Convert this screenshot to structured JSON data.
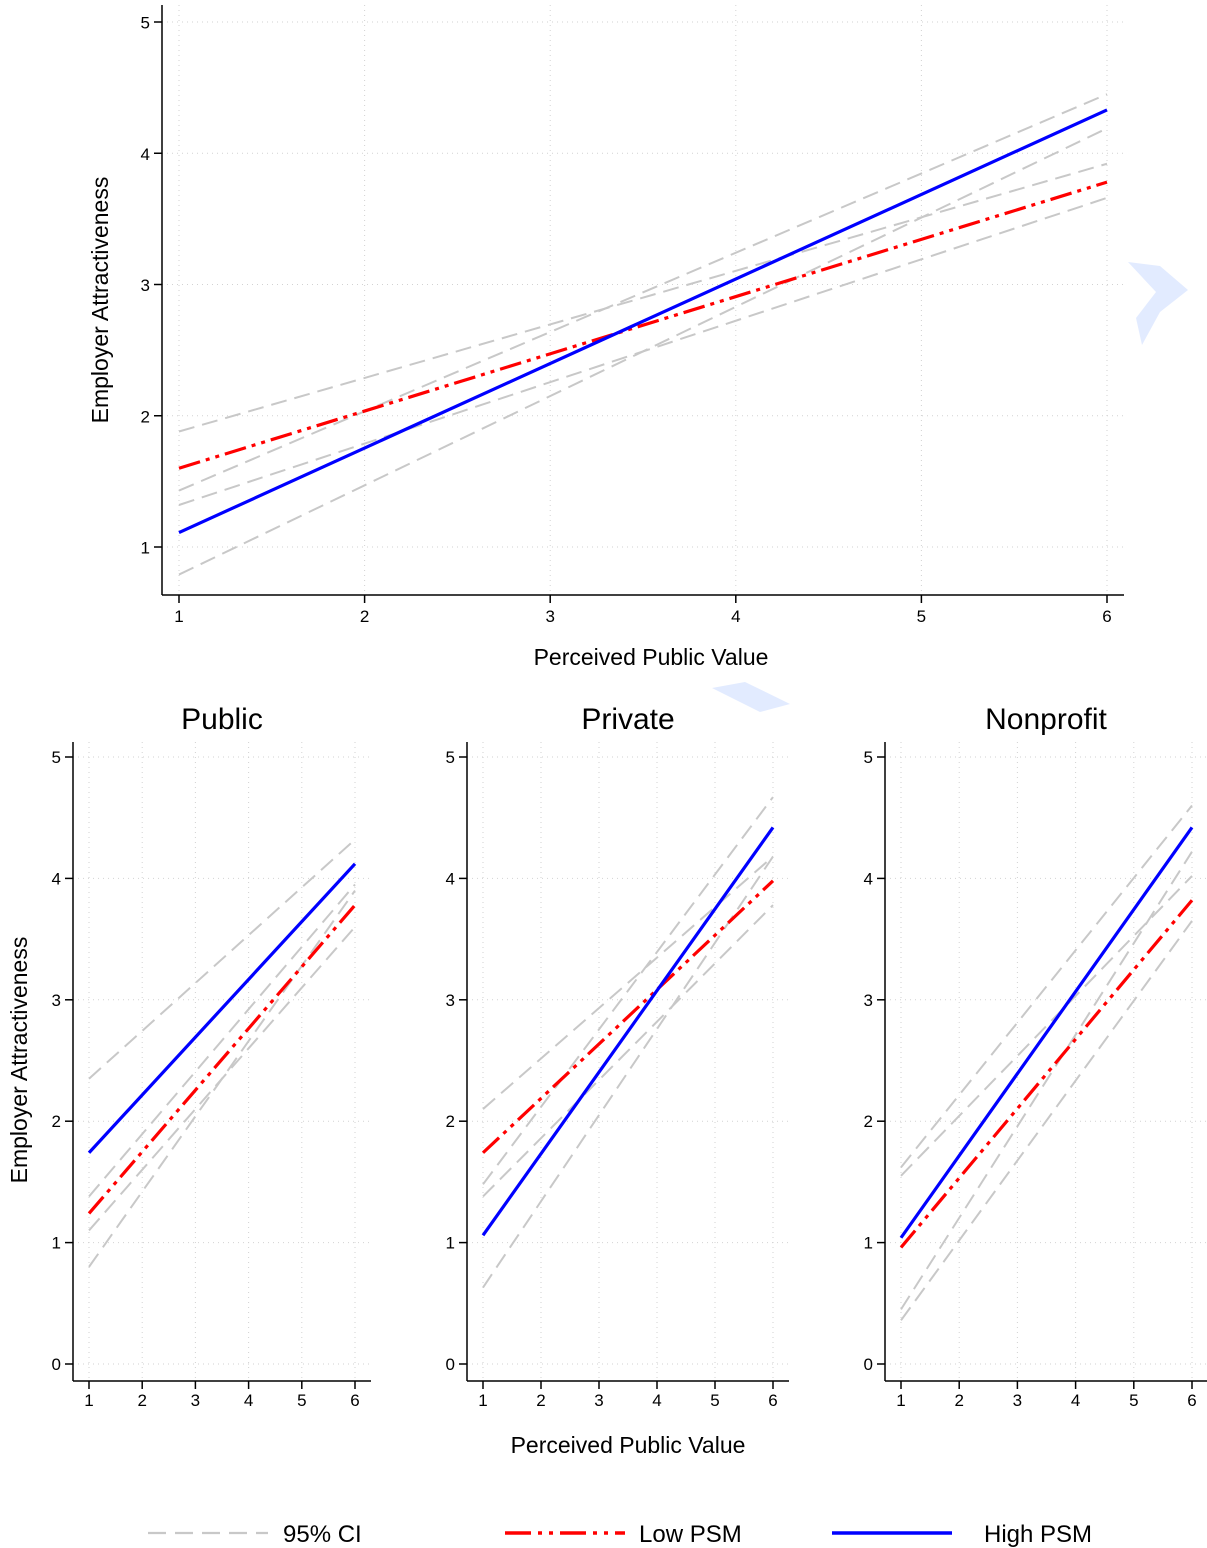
{
  "colors": {
    "low": "#ff0000",
    "high": "#0000ff",
    "ci": "#c8c8c8"
  },
  "legend": {
    "ci": {
      "label": "95% CI",
      "color": "#c8c8c8"
    },
    "low": {
      "label": "Low PSM",
      "color": "#ff0000"
    },
    "high": {
      "label": "High PSM",
      "color": "#0000ff"
    }
  },
  "chart_data": [
    {
      "type": "line",
      "title": "",
      "xlabel": "Perceived Public Value",
      "ylabel": "Employer Attractiveness",
      "xlim": [
        1,
        6
      ],
      "ylim": [
        1,
        5
      ],
      "xticks": [
        1,
        2,
        3,
        4,
        5,
        6
      ],
      "yticks": [
        1,
        2,
        3,
        4,
        5
      ],
      "grid": true,
      "series": [
        {
          "name": "Low PSM",
          "x": [
            1,
            6
          ],
          "y": [
            1.6,
            3.78
          ],
          "ci_lower": [
            1.32,
            3.66
          ],
          "ci_upper": [
            1.88,
            3.92
          ]
        },
        {
          "name": "High PSM",
          "x": [
            1,
            6
          ],
          "y": [
            1.11,
            4.33
          ],
          "ci_lower": [
            0.79,
            4.19
          ],
          "ci_upper": [
            1.43,
            4.45
          ]
        }
      ]
    },
    {
      "type": "line",
      "title": "Public",
      "xlabel": "",
      "ylabel": "Employer Attractiveness",
      "xlim": [
        1,
        6
      ],
      "ylim": [
        0,
        5
      ],
      "xticks": [
        1,
        2,
        3,
        4,
        5,
        6
      ],
      "yticks": [
        0,
        1,
        2,
        3,
        4,
        5
      ],
      "grid": true,
      "series": [
        {
          "name": "Low PSM",
          "x": [
            1,
            6
          ],
          "y": [
            1.24,
            3.78
          ],
          "ci_lower": [
            1.1,
            3.6
          ],
          "ci_upper": [
            1.38,
            3.95
          ]
        },
        {
          "name": "High PSM",
          "x": [
            1,
            6
          ],
          "y": [
            1.74,
            4.12
          ],
          "ci_lower": [
            0.8,
            3.9
          ],
          "ci_upper": [
            2.35,
            4.32
          ]
        }
      ]
    },
    {
      "type": "line",
      "title": "Private",
      "xlabel": "Perceived Public Value",
      "ylabel": "",
      "xlim": [
        1,
        6
      ],
      "ylim": [
        0,
        5
      ],
      "xticks": [
        1,
        2,
        3,
        4,
        5,
        6
      ],
      "yticks": [
        0,
        1,
        2,
        3,
        4,
        5
      ],
      "grid": true,
      "series": [
        {
          "name": "Low PSM",
          "x": [
            1,
            6
          ],
          "y": [
            1.74,
            3.98
          ],
          "ci_lower": [
            1.38,
            3.78
          ],
          "ci_upper": [
            2.1,
            4.18
          ]
        },
        {
          "name": "High PSM",
          "x": [
            1,
            6
          ],
          "y": [
            1.06,
            4.42
          ],
          "ci_lower": [
            0.63,
            4.18
          ],
          "ci_upper": [
            1.48,
            4.67
          ]
        }
      ]
    },
    {
      "type": "line",
      "title": "Nonprofit",
      "xlabel": "",
      "ylabel": "",
      "xlim": [
        1,
        6
      ],
      "ylim": [
        0,
        5
      ],
      "xticks": [
        1,
        2,
        3,
        4,
        5,
        6
      ],
      "yticks": [
        0,
        1,
        2,
        3,
        4,
        5
      ],
      "grid": true,
      "series": [
        {
          "name": "Low PSM",
          "x": [
            1,
            6
          ],
          "y": [
            0.96,
            3.82
          ],
          "ci_lower": [
            0.36,
            3.65
          ],
          "ci_upper": [
            1.55,
            4.02
          ]
        },
        {
          "name": "High PSM",
          "x": [
            1,
            6
          ],
          "y": [
            1.04,
            4.42
          ],
          "ci_lower": [
            0.45,
            4.22
          ],
          "ci_upper": [
            1.62,
            4.6
          ]
        }
      ]
    }
  ]
}
